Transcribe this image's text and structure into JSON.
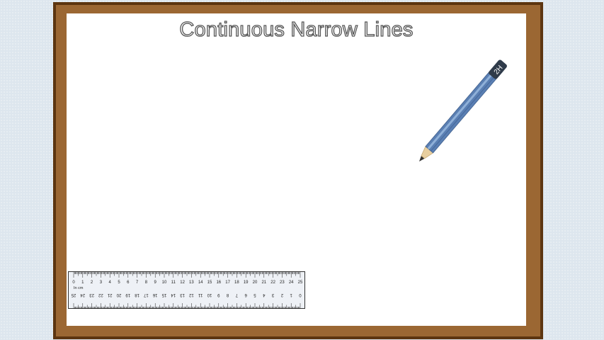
{
  "slide": {
    "title": "Continuous Narrow Lines"
  },
  "pencil": {
    "grade_label": "2H",
    "colors": {
      "body": "#5a7fb3",
      "body_light": "#8fb0d8",
      "cap": "#2f3b4a",
      "wood": "#e8cfa0",
      "lead": "#333333"
    }
  },
  "ruler": {
    "unit_label": "In cm",
    "top_scale": [
      "0",
      "1",
      "2",
      "3",
      "4",
      "5",
      "6",
      "7",
      "8",
      "9",
      "10",
      "11",
      "12",
      "13",
      "14",
      "15",
      "16",
      "17",
      "18",
      "19",
      "20",
      "21",
      "22",
      "23",
      "24",
      "25"
    ],
    "bottom_scale": [
      "25",
      "24",
      "23",
      "22",
      "21",
      "20",
      "19",
      "18",
      "17",
      "16",
      "15",
      "14",
      "13",
      "12",
      "11",
      "10",
      "9",
      "8",
      "7",
      "6",
      "5",
      "4",
      "3",
      "2",
      "1",
      "0"
    ]
  },
  "colors": {
    "frame": "#9b6733",
    "frame_border": "#5c3510",
    "board": "#ffffff",
    "background": "#dde6ee"
  }
}
